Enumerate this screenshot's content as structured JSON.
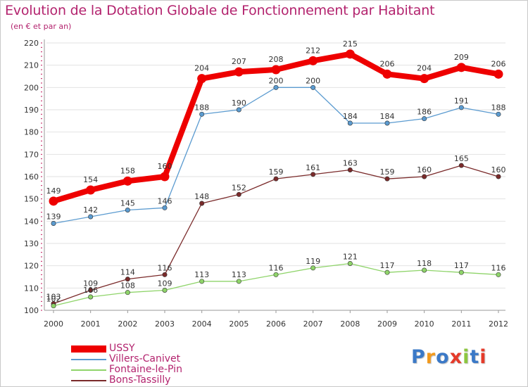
{
  "chart_data": {
    "type": "line",
    "title": "Evolution de la Dotation Globale de Fonctionnement par Habitant",
    "subtitle": "(en € et par an)",
    "xlabel": "",
    "ylabel": "",
    "ylim": [
      100,
      220
    ],
    "yticks": [
      100,
      110,
      120,
      130,
      140,
      150,
      160,
      170,
      180,
      190,
      200,
      210,
      220
    ],
    "categories": [
      "2000",
      "2001",
      "2002",
      "2003",
      "2004",
      "2005",
      "2006",
      "2007",
      "2008",
      "2009",
      "2010",
      "2011",
      "2012"
    ],
    "grid": true,
    "legend_position": "bottom-left",
    "series": [
      {
        "name": "USSY",
        "color": "#ee0000",
        "values": [
          149,
          154,
          158,
          160,
          204,
          207,
          208,
          212,
          215,
          206,
          204,
          209,
          206
        ]
      },
      {
        "name": "Villers-Canivet",
        "color": "#5b9bd0",
        "values": [
          139,
          142,
          145,
          146,
          188,
          190,
          200,
          200,
          184,
          184,
          186,
          191,
          188
        ]
      },
      {
        "name": "Fontaine-le-Pin",
        "color": "#8fd46a",
        "values": [
          102,
          106,
          108,
          109,
          113,
          113,
          116,
          119,
          121,
          117,
          118,
          117,
          116
        ]
      },
      {
        "name": "Bons-Tassilly",
        "color": "#7a2a2a",
        "values": [
          103,
          109,
          114,
          116,
          148,
          152,
          159,
          161,
          163,
          159,
          160,
          165,
          160
        ]
      }
    ]
  },
  "logo": {
    "letters": [
      "P",
      "r",
      "o",
      "x",
      "i",
      "t",
      "i"
    ],
    "colors": [
      "#3b79c7",
      "#f29a1e",
      "#3b79c7",
      "#e53a2a",
      "#8cc63f",
      "#3b79c7",
      "#e53a2a"
    ]
  }
}
